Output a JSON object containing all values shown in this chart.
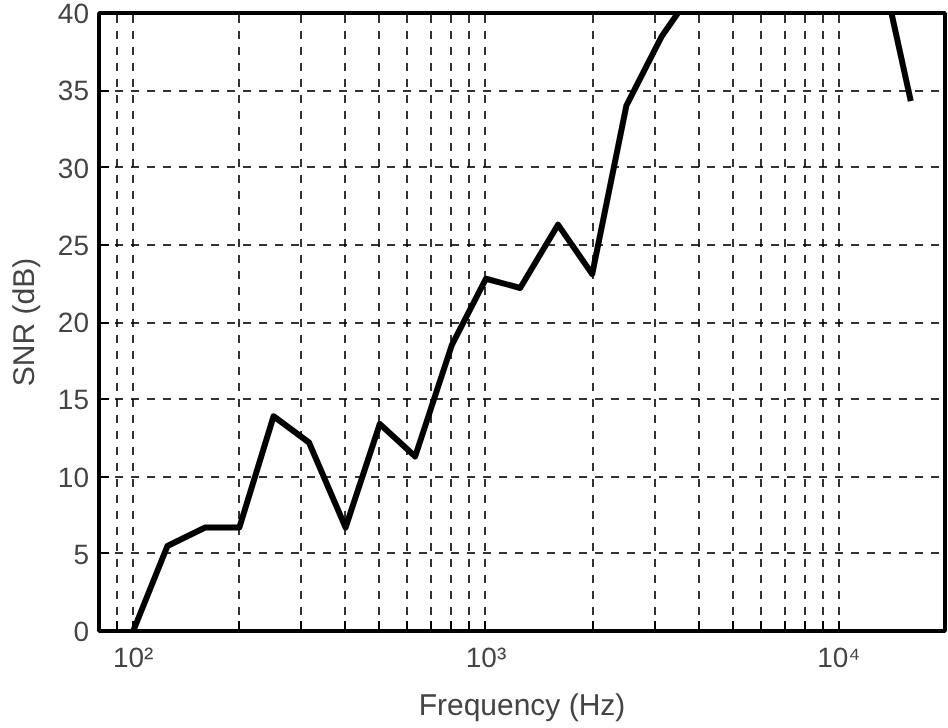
{
  "chart_data": {
    "type": "line",
    "xlabel": "Frequency (Hz)",
    "ylabel": "SNR (dB)",
    "log": "x",
    "x": [
      100,
      125,
      160,
      200,
      250,
      315,
      400,
      500,
      630,
      800,
      1000,
      1250,
      1600,
      2000,
      2500,
      3150,
      3500,
      5000,
      14100,
      16000
    ],
    "series": [
      {
        "color": "#000000",
        "values": [
          0,
          5.5,
          6.7,
          6.7,
          13.9,
          12.2,
          6.7,
          13.4,
          11.3,
          18.5,
          22.8,
          22.2,
          26.3,
          23.1,
          34,
          38.5,
          40,
          null,
          40,
          34.3
        ]
      }
    ],
    "xlim": [
      80,
      20000
    ],
    "ylim": [
      0,
      40
    ],
    "yticks": [
      0,
      5,
      10,
      15,
      20,
      25,
      30,
      35,
      40
    ],
    "xticks": [
      {
        "value": 80,
        "label": null
      },
      {
        "value": 90,
        "label": null
      },
      {
        "value": 100,
        "label": "10²"
      },
      {
        "value": 200,
        "label": null
      },
      {
        "value": 300,
        "label": null
      },
      {
        "value": 400,
        "label": null
      },
      {
        "value": 500,
        "label": null
      },
      {
        "value": 600,
        "label": null
      },
      {
        "value": 700,
        "label": null
      },
      {
        "value": 800,
        "label": null
      },
      {
        "value": 900,
        "label": null
      },
      {
        "value": 1000,
        "label": "10³"
      },
      {
        "value": 2000,
        "label": null
      },
      {
        "value": 3000,
        "label": null
      },
      {
        "value": 4000,
        "label": null
      },
      {
        "value": 5000,
        "label": null
      },
      {
        "value": 6000,
        "label": null
      },
      {
        "value": 7000,
        "label": null
      },
      {
        "value": 8000,
        "label": null
      },
      {
        "value": 9000,
        "label": null
      },
      {
        "value": 10000,
        "label": "10⁴"
      },
      {
        "value": 20000,
        "label": null
      }
    ],
    "grid": true,
    "line_style": "solid",
    "marker": "none"
  }
}
